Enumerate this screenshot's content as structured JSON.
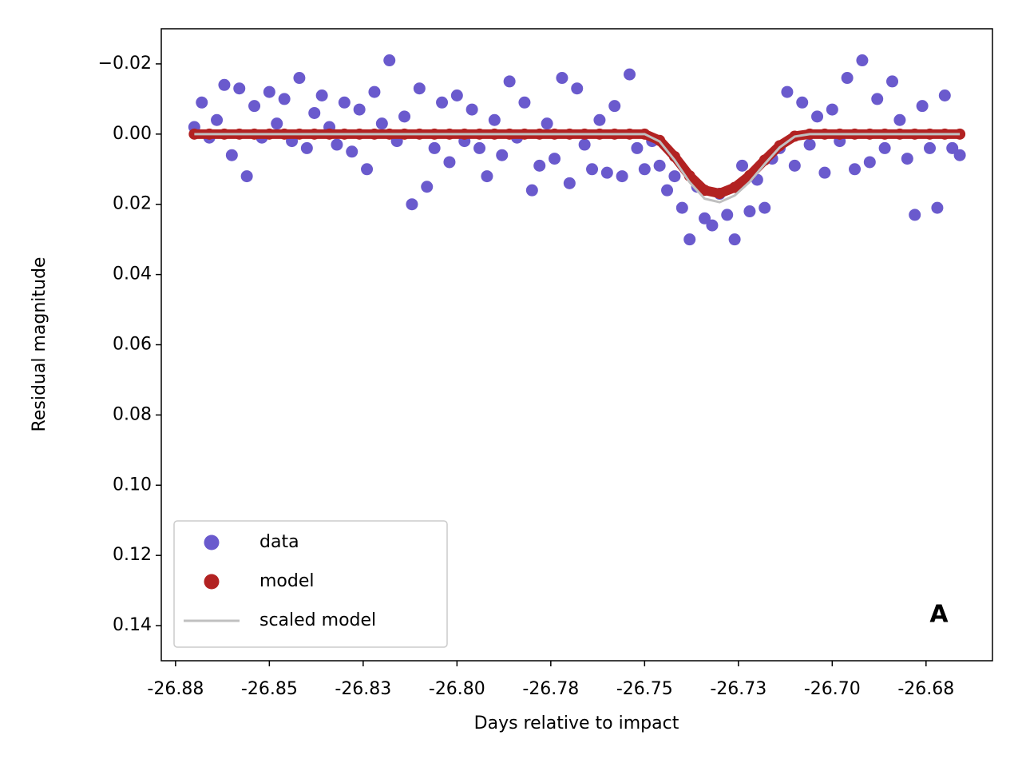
{
  "chart_data": {
    "type": "scatter",
    "xlabel": "Days relative to impact",
    "ylabel": "Residual magnitude",
    "annotation": "A",
    "xlim": [
      -26.8788,
      -26.6573
    ],
    "ylim": [
      -0.03,
      0.15
    ],
    "y_inverted": true,
    "xticks": [
      {
        "value": -26.875,
        "label": "-26.88"
      },
      -26.85,
      {
        "value": -26.825,
        "label": "-26.83"
      },
      {
        "value": -26.8,
        "label": "-26.80"
      },
      {
        "value": -26.775,
        "label": "-26.78"
      },
      -26.75,
      {
        "value": -26.725,
        "label": "-26.73"
      },
      {
        "value": -26.7,
        "label": "-26.70"
      },
      {
        "value": -26.675,
        "label": "-26.68"
      }
    ],
    "yticks": [
      {
        "value": -0.02,
        "label": "−0.02"
      },
      {
        "value": 0,
        "label": "0.00"
      },
      0.02,
      0.04,
      0.06,
      0.08,
      {
        "value": 0.1,
        "label": "0.10"
      },
      0.12,
      0.14
    ],
    "legend": "lower left",
    "series": [
      {
        "name": "data",
        "color": "#6a5acd",
        "style": "points",
        "x": [
          -26.87,
          -26.868,
          -26.866,
          -26.864,
          -26.862,
          -26.86,
          -26.858,
          -26.856,
          -26.854,
          -26.852,
          -26.85,
          -26.848,
          -26.846,
          -26.844,
          -26.842,
          -26.84,
          -26.838,
          -26.836,
          -26.834,
          -26.832,
          -26.83,
          -26.828,
          -26.826,
          -26.824,
          -26.822,
          -26.82,
          -26.818,
          -26.816,
          -26.814,
          -26.812,
          -26.81,
          -26.808,
          -26.806,
          -26.804,
          -26.802,
          -26.8,
          -26.798,
          -26.796,
          -26.794,
          -26.792,
          -26.79,
          -26.788,
          -26.786,
          -26.784,
          -26.782,
          -26.78,
          -26.778,
          -26.776,
          -26.774,
          -26.772,
          -26.77,
          -26.768,
          -26.766,
          -26.764,
          -26.762,
          -26.76,
          -26.758,
          -26.756,
          -26.754,
          -26.752,
          -26.75,
          -26.748,
          -26.746,
          -26.744,
          -26.742,
          -26.74,
          -26.738,
          -26.736,
          -26.734,
          -26.732,
          -26.73,
          -26.728,
          -26.726,
          -26.724,
          -26.722,
          -26.72,
          -26.718,
          -26.716,
          -26.714,
          -26.712,
          -26.71,
          -26.708,
          -26.706,
          -26.704,
          -26.702,
          -26.7,
          -26.698,
          -26.696,
          -26.694,
          -26.692,
          -26.69,
          -26.688,
          -26.686,
          -26.684,
          -26.682,
          -26.68,
          -26.678,
          -26.676,
          -26.674,
          -26.672,
          -26.67,
          -26.668,
          -26.666
        ],
        "values": [
          -0.002,
          -0.009,
          0.001,
          -0.004,
          -0.014,
          0.006,
          -0.013,
          0.012,
          -0.008,
          0.001,
          -0.012,
          -0.003,
          -0.01,
          0.002,
          -0.016,
          0.004,
          -0.006,
          -0.011,
          -0.002,
          0.003,
          -0.009,
          0.005,
          -0.007,
          0.01,
          -0.012,
          -0.003,
          -0.021,
          0.002,
          -0.005,
          0.02,
          -0.013,
          0.015,
          0.004,
          -0.009,
          0.008,
          -0.011,
          0.002,
          -0.007,
          0.004,
          0.012,
          -0.004,
          0.006,
          -0.015,
          0.001,
          -0.009,
          0.016,
          0.009,
          -0.003,
          0.007,
          -0.016,
          0.014,
          -0.013,
          0.003,
          0.01,
          -0.004,
          0.011,
          -0.008,
          0.012,
          -0.017,
          0.004,
          0.01,
          0.002,
          0.009,
          0.016,
          0.012,
          0.021,
          0.03,
          0.015,
          0.024,
          0.026,
          0.017,
          0.023,
          0.03,
          0.009,
          0.022,
          0.013,
          0.021,
          0.007,
          0.004,
          -0.012,
          0.009,
          -0.009,
          0.003,
          -0.005,
          0.011,
          -0.007,
          0.002,
          -0.016,
          0.01,
          -0.021,
          0.008,
          -0.01,
          0.004,
          -0.015,
          -0.004,
          0.007,
          0.023,
          -0.008,
          0.004,
          0.021,
          -0.011,
          0.004,
          0.006
        ]
      },
      {
        "name": "model",
        "color": "#b22222",
        "style": "thick-points",
        "x": [
          -26.87,
          -26.866,
          -26.862,
          -26.858,
          -26.854,
          -26.85,
          -26.846,
          -26.842,
          -26.838,
          -26.834,
          -26.83,
          -26.826,
          -26.822,
          -26.818,
          -26.814,
          -26.81,
          -26.806,
          -26.802,
          -26.798,
          -26.794,
          -26.79,
          -26.786,
          -26.782,
          -26.778,
          -26.774,
          -26.77,
          -26.766,
          -26.762,
          -26.758,
          -26.754,
          -26.75,
          -26.746,
          -26.742,
          -26.738,
          -26.734,
          -26.73,
          -26.726,
          -26.722,
          -26.718,
          -26.714,
          -26.71,
          -26.706,
          -26.702,
          -26.698,
          -26.694,
          -26.69,
          -26.686,
          -26.682,
          -26.678,
          -26.674,
          -26.67,
          -26.666
        ],
        "values": [
          0,
          0,
          0,
          0,
          0,
          0,
          0,
          0,
          0,
          0,
          0,
          0,
          0,
          0,
          0,
          0,
          0,
          0,
          0,
          0,
          0,
          0,
          0,
          0,
          0,
          0,
          0,
          0,
          0,
          0,
          0,
          0.0018,
          0.0064,
          0.0119,
          0.016,
          0.0169,
          0.0152,
          0.0118,
          0.0074,
          0.0033,
          0.0006,
          0,
          0,
          0,
          0,
          0,
          0,
          0,
          0,
          0,
          0,
          0
        ]
      },
      {
        "name": "scaled model",
        "color": "#c0c0c0",
        "style": "line",
        "x": [
          -26.87,
          -26.866,
          -26.862,
          -26.858,
          -26.854,
          -26.85,
          -26.846,
          -26.842,
          -26.838,
          -26.834,
          -26.83,
          -26.826,
          -26.822,
          -26.818,
          -26.814,
          -26.81,
          -26.806,
          -26.802,
          -26.798,
          -26.794,
          -26.79,
          -26.786,
          -26.782,
          -26.778,
          -26.774,
          -26.77,
          -26.766,
          -26.762,
          -26.758,
          -26.754,
          -26.75,
          -26.746,
          -26.742,
          -26.738,
          -26.734,
          -26.73,
          -26.726,
          -26.722,
          -26.718,
          -26.714,
          -26.71,
          -26.706,
          -26.702,
          -26.698,
          -26.694,
          -26.69,
          -26.686,
          -26.682,
          -26.678,
          -26.674,
          -26.67,
          -26.666
        ],
        "values": [
          0,
          0,
          0,
          0,
          0,
          0,
          0,
          0,
          0,
          0,
          0,
          0,
          0,
          0,
          0,
          0,
          0,
          0,
          0,
          0,
          0,
          0,
          0,
          0,
          0,
          0,
          0,
          0,
          0,
          0,
          0,
          0.0021,
          0.0074,
          0.0137,
          0.0184,
          0.0194,
          0.0175,
          0.0136,
          0.0085,
          0.0038,
          0.0007,
          0,
          0,
          0,
          0,
          0,
          0,
          0,
          0,
          0,
          0,
          0
        ]
      }
    ]
  }
}
